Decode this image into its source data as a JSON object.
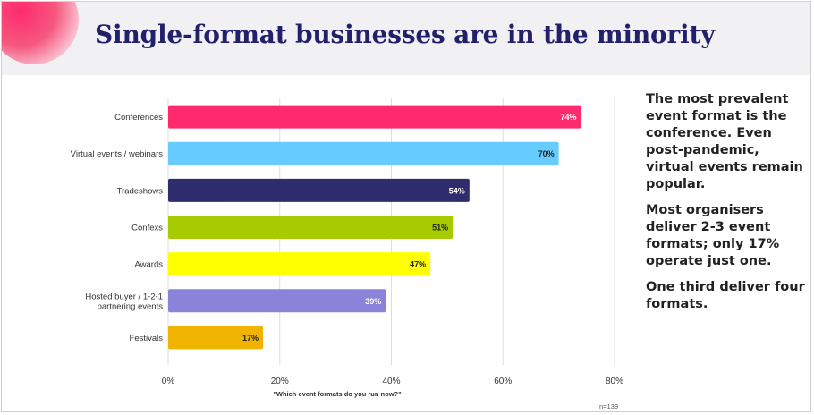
{
  "title": "Single-format businesses are in the minority",
  "side_text": [
    "The most prevalent event format is the conference. Even post-pandemic, virtual events remain popular.",
    "Most organisers deliver 2-3 event formats; only 17% operate just one.",
    "One third deliver four formats."
  ],
  "chart_data": {
    "type": "bar",
    "orientation": "horizontal",
    "categories": [
      [
        "Conferences"
      ],
      [
        "Virtual events / webinars"
      ],
      [
        "Tradeshows"
      ],
      [
        "Confexs"
      ],
      [
        "Awards"
      ],
      [
        "Hosted buyer / 1-2-1",
        "partnering events"
      ],
      [
        "Festivals"
      ]
    ],
    "values": [
      74,
      70,
      54,
      51,
      47,
      39,
      17
    ],
    "data_labels": [
      "74%",
      "70%",
      "54%",
      "51%",
      "47%",
      "39%",
      "17%"
    ],
    "colors": [
      "#ff2a6d",
      "#66ccff",
      "#2f2d6e",
      "#a6cc00",
      "#ffff00",
      "#8b83d9",
      "#f0b400"
    ],
    "label_colors": [
      "#ffffff",
      "#222222",
      "#ffffff",
      "#222222",
      "#222222",
      "#ffffff",
      "#222222"
    ],
    "xlim": [
      0,
      80
    ],
    "xticks": [
      0,
      20,
      40,
      60,
      80
    ],
    "xtick_labels": [
      "0%",
      "20%",
      "40%",
      "60%",
      "80%"
    ],
    "grid": "vertical",
    "xlabel": "\"Which event formats do you run now?\"",
    "note": "n=139"
  }
}
